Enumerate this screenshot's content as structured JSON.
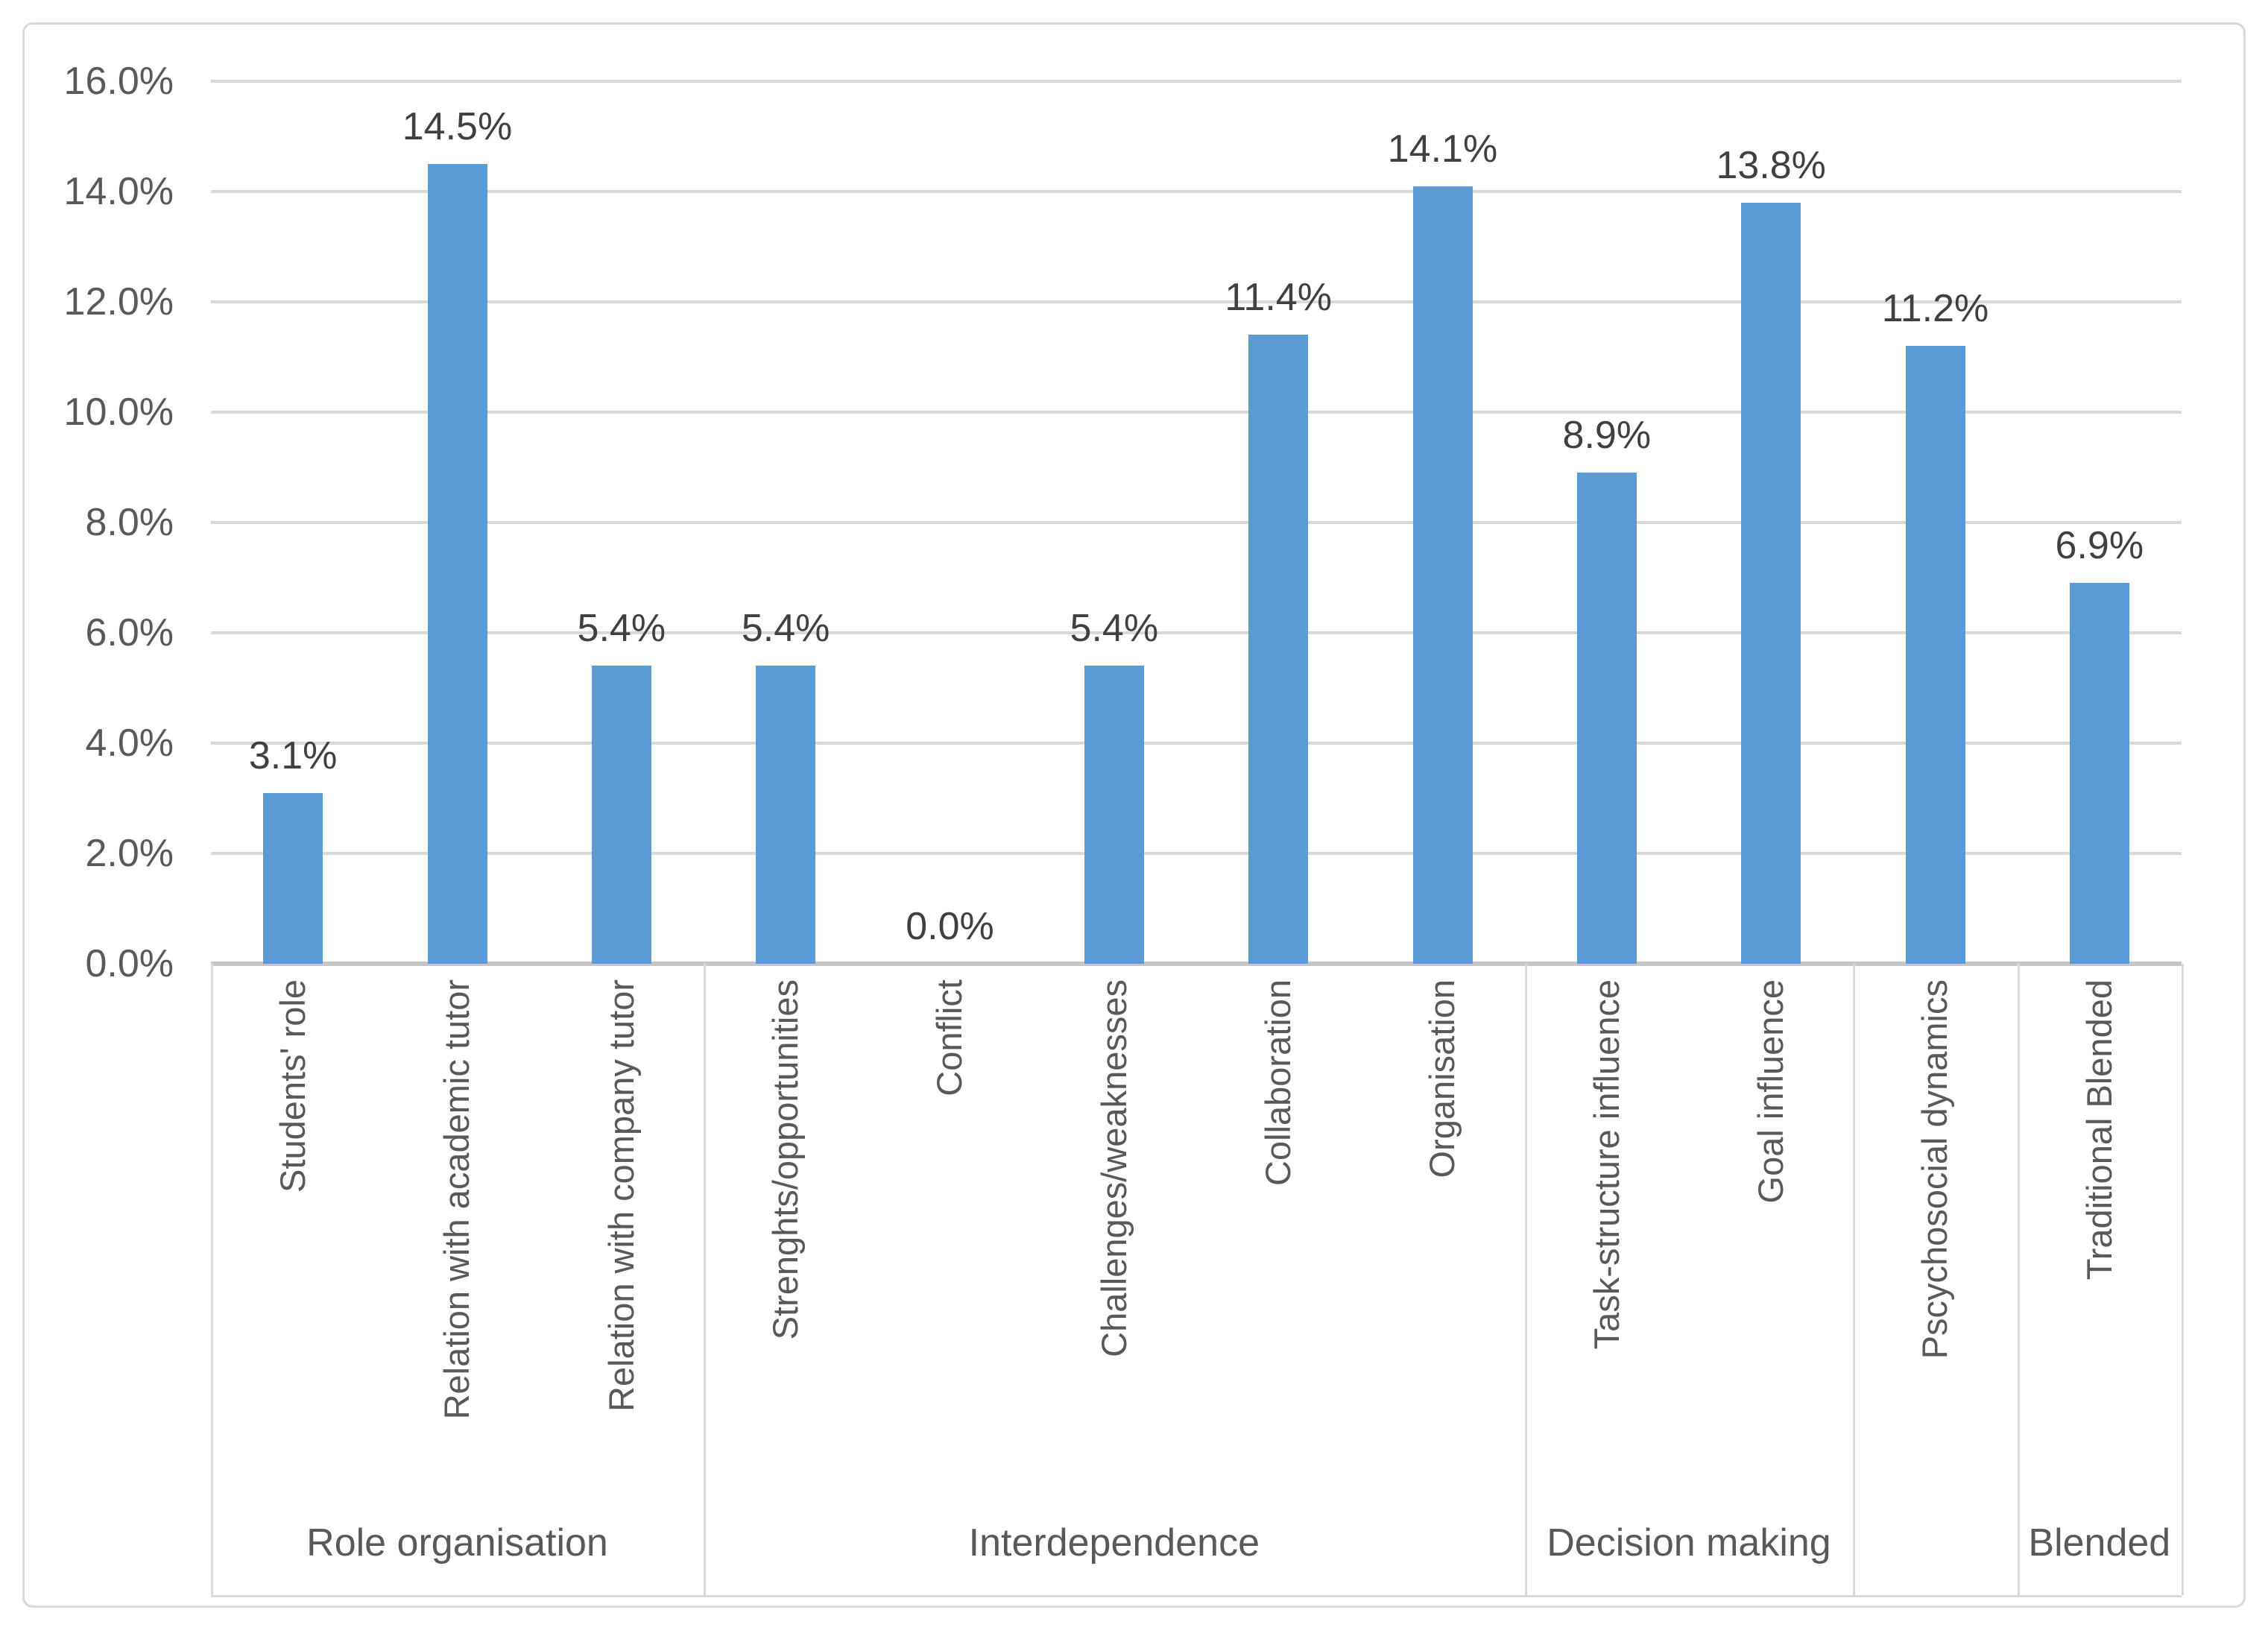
{
  "chart_data": {
    "type": "bar",
    "title": "",
    "value_unit": "percent",
    "bar_color": "#5B9BD5",
    "text_color": "#595959",
    "gridline_color": "#D9D9D9",
    "grid": true,
    "legend": "none",
    "ylim": [
      0,
      16
    ],
    "y_tick_step": 2,
    "y_tick_labels": [
      "0.0%",
      "2.0%",
      "4.0%",
      "6.0%",
      "8.0%",
      "10.0%",
      "12.0%",
      "14.0%",
      "16.0%"
    ],
    "category_label_rotation_degrees": 90,
    "groups": [
      {
        "label": "Role organisation",
        "categories": [
          {
            "label": "Students' role",
            "value": 3.1,
            "data_label": "3.1%"
          },
          {
            "label": "Relation with academic tutor",
            "value": 14.5,
            "data_label": "14.5%"
          },
          {
            "label": "Relation with company tutor",
            "value": 5.4,
            "data_label": "5.4%"
          }
        ]
      },
      {
        "label": "Interdependence",
        "categories": [
          {
            "label": "Strenghts/opportunities",
            "value": 5.4,
            "data_label": "5.4%"
          },
          {
            "label": "Conflict",
            "value": 0.0,
            "data_label": "0.0%"
          },
          {
            "label": "Challenges/weaknesses",
            "value": 5.4,
            "data_label": "5.4%"
          },
          {
            "label": "Collaboration",
            "value": 11.4,
            "data_label": "11.4%"
          },
          {
            "label": "Organisation",
            "value": 14.1,
            "data_label": "14.1%"
          }
        ]
      },
      {
        "label": "Decision making",
        "categories": [
          {
            "label": "Task-structure influence",
            "value": 8.9,
            "data_label": "8.9%"
          },
          {
            "label": "Goal influence",
            "value": 13.8,
            "data_label": "13.8%"
          }
        ]
      },
      {
        "label": "",
        "categories": [
          {
            "label": "Pscychosocial dynamics",
            "value": 11.2,
            "data_label": "11.2%"
          }
        ]
      },
      {
        "label": "Blended",
        "categories": [
          {
            "label": "Traditional Blended",
            "value": 6.9,
            "data_label": "6.9%"
          }
        ]
      }
    ]
  }
}
